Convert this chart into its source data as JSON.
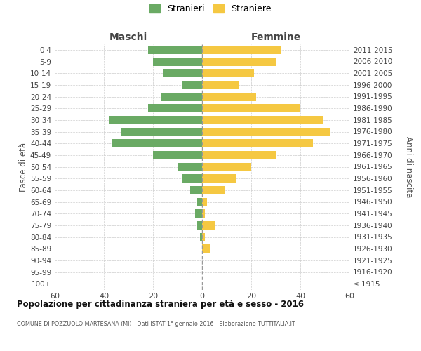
{
  "age_groups": [
    "100+",
    "95-99",
    "90-94",
    "85-89",
    "80-84",
    "75-79",
    "70-74",
    "65-69",
    "60-64",
    "55-59",
    "50-54",
    "45-49",
    "40-44",
    "35-39",
    "30-34",
    "25-29",
    "20-24",
    "15-19",
    "10-14",
    "5-9",
    "0-4"
  ],
  "birth_years": [
    "≤ 1915",
    "1916-1920",
    "1921-1925",
    "1926-1930",
    "1931-1935",
    "1936-1940",
    "1941-1945",
    "1946-1950",
    "1951-1955",
    "1956-1960",
    "1961-1965",
    "1966-1970",
    "1971-1975",
    "1976-1980",
    "1981-1985",
    "1986-1990",
    "1991-1995",
    "1996-2000",
    "2001-2005",
    "2006-2010",
    "2011-2015"
  ],
  "maschi": [
    0,
    0,
    0,
    0,
    1,
    2,
    3,
    2,
    5,
    8,
    10,
    20,
    37,
    33,
    38,
    22,
    17,
    8,
    16,
    20,
    22
  ],
  "femmine": [
    0,
    0,
    0,
    3,
    1,
    5,
    1,
    2,
    9,
    14,
    20,
    30,
    45,
    52,
    49,
    40,
    22,
    15,
    21,
    30,
    32
  ],
  "male_color": "#6aaa64",
  "female_color": "#f5c842",
  "background_color": "#ffffff",
  "grid_color": "#cccccc",
  "center_line_color": "#999999",
  "title": "Popolazione per cittadinanza straniera per età e sesso - 2016",
  "subtitle": "COMUNE DI POZZUOLO MARTESANA (MI) - Dati ISTAT 1° gennaio 2016 - Elaborazione TUTTITALIA.IT",
  "header_left": "Maschi",
  "header_right": "Femmine",
  "ylabel_left": "Fasce di età",
  "ylabel_right": "Anni di nascita",
  "legend_male": "Stranieri",
  "legend_female": "Straniere",
  "xlim": 60,
  "xticks_raw": [
    -60,
    -40,
    -20,
    0,
    20,
    40,
    60
  ],
  "xtick_labels": [
    "60",
    "40",
    "20",
    "0",
    "20",
    "40",
    "60"
  ]
}
